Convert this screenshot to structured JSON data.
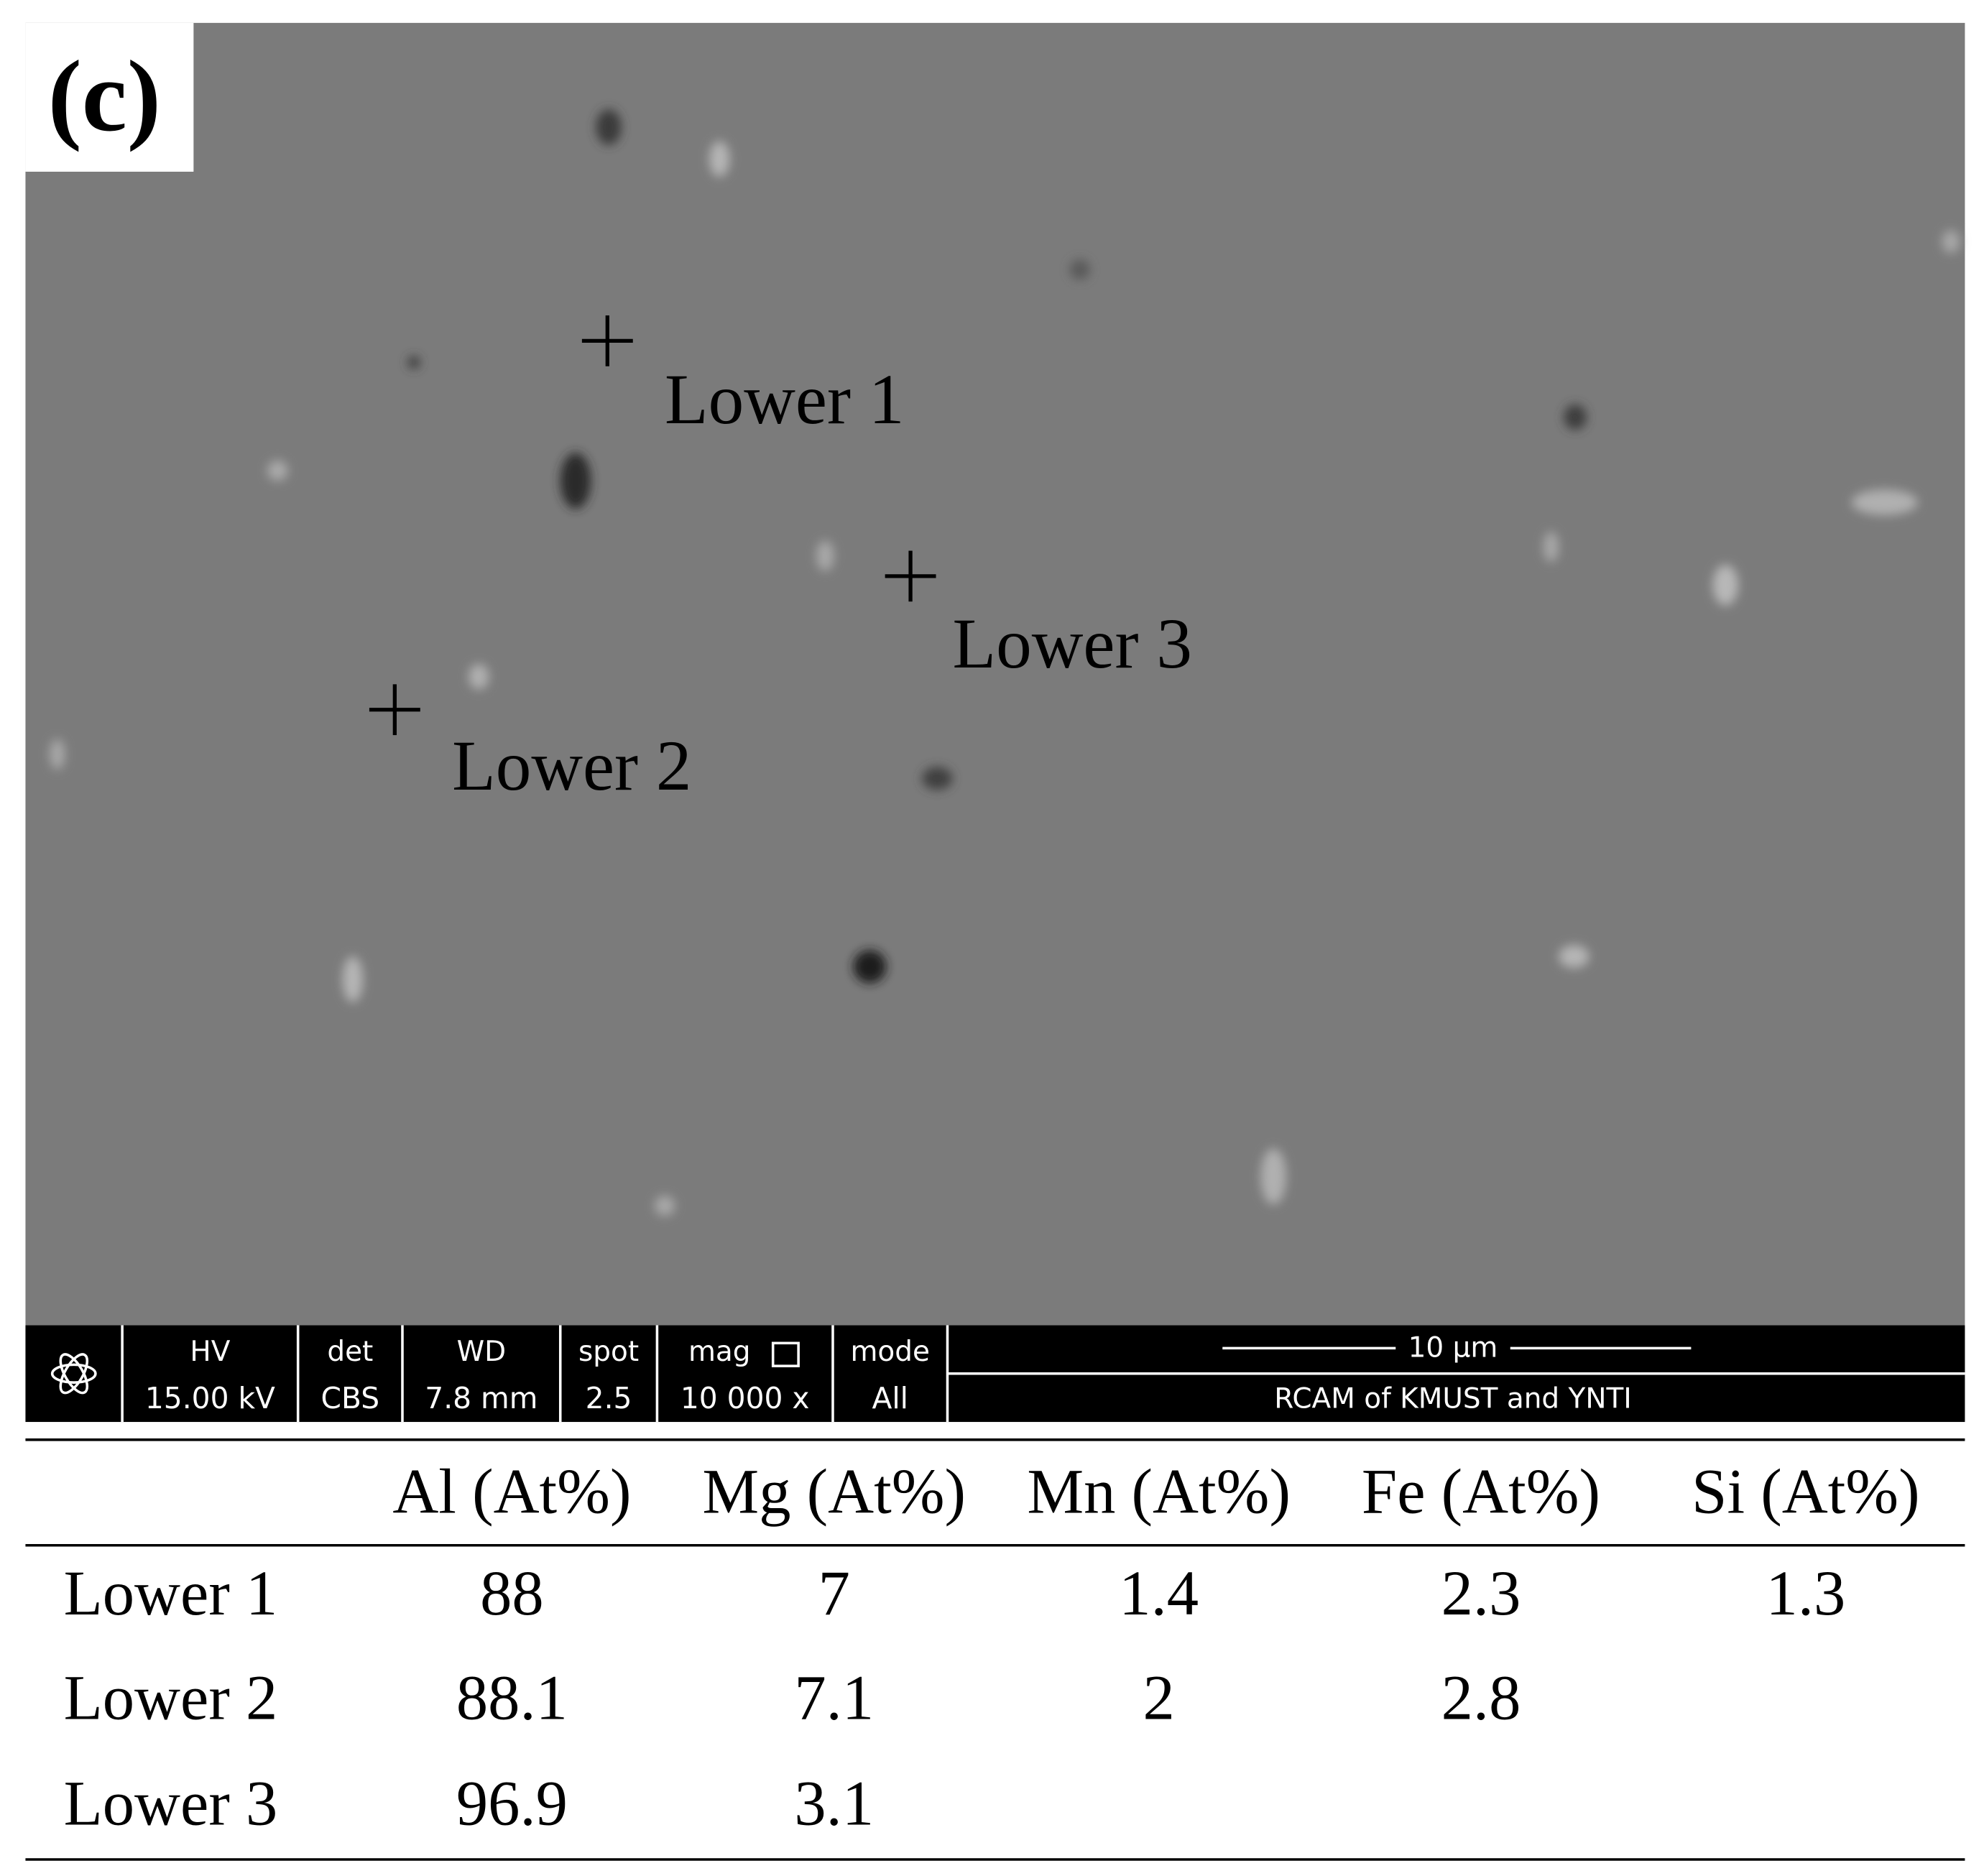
{
  "panel_label": "(c)",
  "image": {
    "annotations": [
      "Lower 1",
      "Lower 2",
      "Lower 3"
    ],
    "info_bar": {
      "fields": [
        {
          "label": "HV",
          "value": "15.00 kV"
        },
        {
          "label": "det",
          "value": "CBS"
        },
        {
          "label": "WD",
          "value": "7.8 mm"
        },
        {
          "label": "spot",
          "value": "2.5"
        },
        {
          "label": "mag",
          "value": "10 000 x"
        },
        {
          "label": "mode",
          "value": "All"
        }
      ],
      "scale_bar": "10 µm",
      "credit": "RCAM of KMUST and YNTI"
    }
  },
  "table": {
    "columns": [
      "Al (At%)",
      "Mg (At%)",
      "Mn (At%)",
      "Fe (At%)",
      "Si (At%)"
    ],
    "rows": [
      {
        "label": "Lower 1",
        "cells": [
          "88",
          "7",
          "1.4",
          "2.3",
          "1.3"
        ]
      },
      {
        "label": "Lower 2",
        "cells": [
          "88.1",
          "7.1",
          "2",
          "2.8"
        ]
      },
      {
        "label": "Lower 3",
        "cells": [
          "96.9",
          "3.1"
        ]
      }
    ]
  }
}
